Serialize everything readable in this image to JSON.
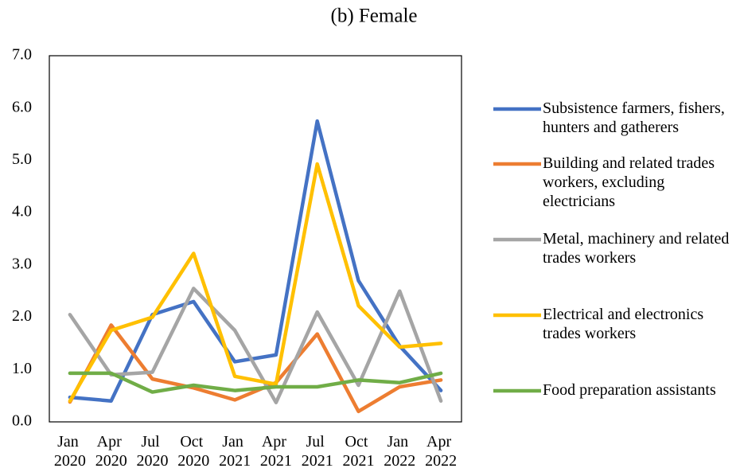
{
  "chart_data": {
    "type": "line",
    "title": "(b) Female",
    "categories": [
      "Jan 2020",
      "Apr 2020",
      "Jul 2020",
      "Oct 2020",
      "Jan 2021",
      "Apr 2021",
      "Jul 2021",
      "Oct 2021",
      "Jan 2022",
      "Apr 2022"
    ],
    "ylim": [
      0,
      7
    ],
    "yticks": [
      {
        "value": 0,
        "label": "0.0"
      },
      {
        "value": 1,
        "label": "1.0"
      },
      {
        "value": 2,
        "label": "2.0"
      },
      {
        "value": 3,
        "label": "3.0"
      },
      {
        "value": 4,
        "label": "4.0"
      },
      {
        "value": 5,
        "label": "5.0"
      },
      {
        "value": 6,
        "label": "6.0"
      },
      {
        "value": 7,
        "label": "7.0"
      }
    ],
    "grid": false,
    "legend": "right",
    "series": [
      {
        "name": "Subsistence farmers, fishers, hunters and gatherers",
        "color": "#4472c4",
        "values": [
          0.47,
          0.4,
          2.05,
          2.3,
          1.15,
          1.28,
          5.75,
          2.7,
          1.45,
          0.6
        ]
      },
      {
        "name": "Building and related trades workers, excluding electricians",
        "color": "#ed7d31",
        "values": [
          0.38,
          1.85,
          0.82,
          0.65,
          0.42,
          0.75,
          1.68,
          0.2,
          0.67,
          0.8
        ]
      },
      {
        "name": "Metal, machinery and related trades workers",
        "color": "#a5a5a5",
        "values": [
          2.05,
          0.9,
          0.95,
          2.55,
          1.75,
          0.37,
          2.1,
          0.7,
          2.5,
          0.4
        ]
      },
      {
        "name": "Electrical and electronics trades workers",
        "color": "#ffc000",
        "values": [
          0.4,
          1.75,
          2.0,
          3.22,
          0.87,
          0.72,
          4.93,
          2.22,
          1.43,
          1.5
        ]
      },
      {
        "name": "Food preparation assistants",
        "color": "#70ad47",
        "values": [
          0.93,
          0.93,
          0.57,
          0.7,
          0.6,
          0.67,
          0.67,
          0.8,
          0.75,
          0.93
        ]
      }
    ]
  }
}
